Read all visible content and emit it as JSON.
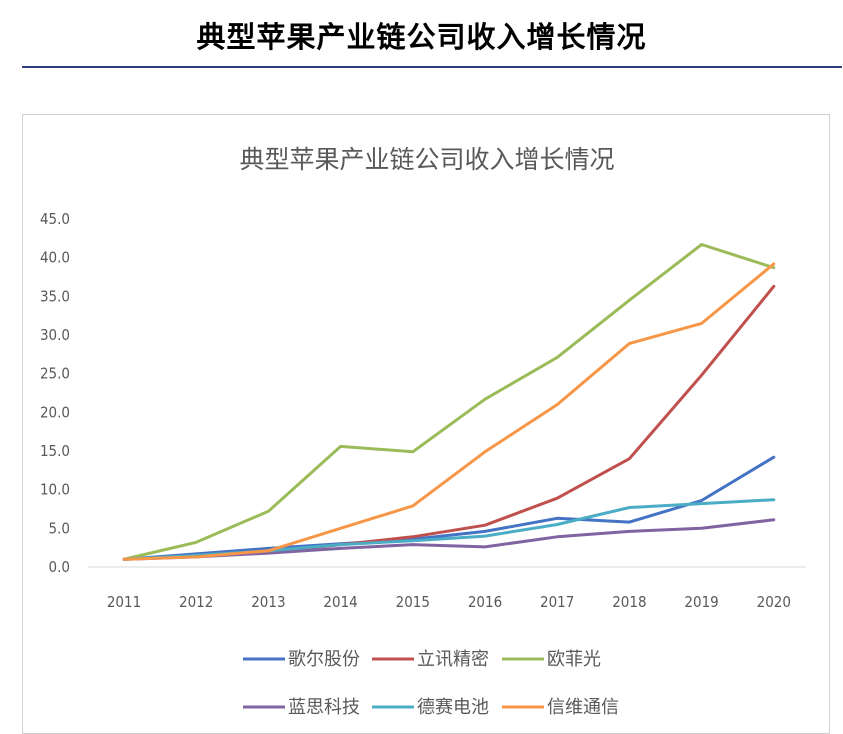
{
  "page": {
    "title": "典型苹果产业链公司收入增长情况"
  },
  "chart_data": {
    "type": "line",
    "title": "典型苹果产业链公司收入增长情况",
    "x": [
      "2011",
      "2012",
      "2013",
      "2014",
      "2015",
      "2016",
      "2017",
      "2018",
      "2019",
      "2020"
    ],
    "ylim": [
      0,
      45
    ],
    "yticks": [
      "0.0",
      "5.0",
      "10.0",
      "15.0",
      "20.0",
      "25.0",
      "30.0",
      "35.0",
      "40.0",
      "45.0"
    ],
    "grid": false,
    "legend_position": "bottom",
    "series": [
      {
        "name": "歌尔股份",
        "color": "#4472c4",
        "values": [
          1.0,
          1.7,
          2.4,
          3.0,
          3.6,
          4.6,
          6.3,
          5.8,
          8.6,
          14.2
        ]
      },
      {
        "name": "立讯精密",
        "color": "#c0504d",
        "values": [
          1.0,
          1.4,
          1.9,
          2.9,
          3.9,
          5.4,
          8.9,
          14.0,
          24.8,
          36.3
        ]
      },
      {
        "name": "欧菲光",
        "color": "#9bbb59",
        "values": [
          1.0,
          3.2,
          7.2,
          15.6,
          14.9,
          21.7,
          27.1,
          34.5,
          41.7,
          38.7
        ]
      },
      {
        "name": "蓝思科技",
        "color": "#8064a2",
        "values": [
          1.0,
          1.3,
          1.8,
          2.4,
          2.9,
          2.6,
          3.9,
          4.6,
          5.0,
          6.1
        ]
      },
      {
        "name": "德赛电池",
        "color": "#4bacc6",
        "values": [
          1.0,
          1.5,
          2.1,
          2.9,
          3.4,
          4.0,
          5.5,
          7.7,
          8.2,
          8.7
        ]
      },
      {
        "name": "信维通信",
        "color": "#f79646",
        "values": [
          1.0,
          1.3,
          2.1,
          5.0,
          7.9,
          14.9,
          21.0,
          28.9,
          31.5,
          39.2
        ]
      }
    ]
  }
}
